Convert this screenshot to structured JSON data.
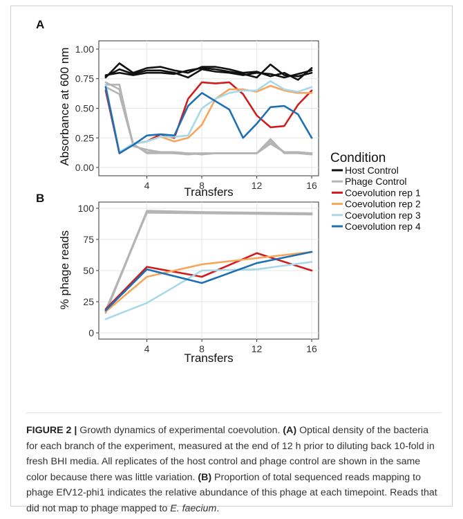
{
  "figure": {
    "caption": {
      "label": "FIGURE 2 |",
      "intro": " Growth dynamics of experimental coevolution. ",
      "a_marker": "(A)",
      "a_text": " Optical density of the bacteria for each branch of the experiment, measured at the end of 12 h prior to diluting back 10-fold in fresh BHI media. All replicates of the host control and phage control are shown in the same color because there was little variation. ",
      "b_marker": "(B)",
      "b_text": " Proportion of total sequenced reads mapping to phage EfV12-phi1 indicates the relative abundance of this phage at each timepoint. Reads that did not map to phage mapped to ",
      "species": "E. faecium",
      "end": "."
    }
  },
  "legend": {
    "title": "Condition",
    "items": [
      {
        "label": "Host Control",
        "color": "#111111"
      },
      {
        "label": "Phage Control",
        "color": "#b4b4b4"
      },
      {
        "label": "Coevolution rep 1",
        "color": "#cf1d1d"
      },
      {
        "label": "Coevolution rep 2",
        "color": "#f5a65a"
      },
      {
        "label": "Coevolution rep 3",
        "color": "#a8d8ea"
      },
      {
        "label": "Coevolution rep 4",
        "color": "#1f6fb4"
      }
    ]
  },
  "chart_data": [
    {
      "panel": "A",
      "type": "line",
      "xlabel": "Transfers",
      "ylabel": "Absorbance at 600 nm",
      "xlim": [
        1,
        16
      ],
      "ylim": [
        0,
        1
      ],
      "xticks": [
        4,
        8,
        12,
        16
      ],
      "yticks": [
        0.0,
        0.25,
        0.5,
        0.75,
        1.0
      ],
      "ytick_labels": [
        "0.00",
        "0.25",
        "0.50",
        "0.75",
        "1.00"
      ],
      "grid": true,
      "series": [
        {
          "group": "Host Control",
          "x": [
            1,
            2,
            3,
            4,
            5,
            6,
            7,
            8,
            9,
            10,
            11,
            12,
            13,
            14,
            15,
            16
          ],
          "y": [
            0.76,
            0.88,
            0.8,
            0.84,
            0.85,
            0.82,
            0.8,
            0.85,
            0.85,
            0.83,
            0.8,
            0.81,
            0.77,
            0.8,
            0.74,
            0.84
          ]
        },
        {
          "group": "Host Control",
          "x": [
            1,
            2,
            3,
            4,
            5,
            6,
            7,
            8,
            9,
            10,
            11,
            12,
            13,
            14,
            15,
            16
          ],
          "y": [
            0.78,
            0.8,
            0.78,
            0.8,
            0.8,
            0.79,
            0.82,
            0.84,
            0.83,
            0.81,
            0.79,
            0.76,
            0.87,
            0.78,
            0.77,
            0.8
          ]
        },
        {
          "group": "Host Control",
          "x": [
            1,
            2,
            3,
            4,
            5,
            6,
            7,
            8,
            9,
            10,
            11,
            12,
            13,
            14,
            15,
            16
          ],
          "y": [
            0.77,
            0.83,
            0.79,
            0.82,
            0.82,
            0.8,
            0.76,
            0.83,
            0.81,
            0.8,
            0.78,
            0.8,
            0.79,
            0.76,
            0.79,
            0.82
          ]
        },
        {
          "group": "Phage Control",
          "x": [
            1,
            2,
            3,
            4,
            5,
            6,
            7,
            8,
            9,
            10,
            11,
            12,
            13,
            14,
            15,
            16
          ],
          "y": [
            0.72,
            0.66,
            0.2,
            0.12,
            0.12,
            0.12,
            0.11,
            0.12,
            0.12,
            0.12,
            0.12,
            0.12,
            0.22,
            0.13,
            0.13,
            0.12
          ]
        },
        {
          "group": "Phage Control",
          "x": [
            1,
            2,
            3,
            4,
            5,
            6,
            7,
            8,
            9,
            10,
            11,
            12,
            13,
            14,
            15,
            16
          ],
          "y": [
            0.7,
            0.7,
            0.18,
            0.15,
            0.13,
            0.12,
            0.12,
            0.11,
            0.12,
            0.12,
            0.12,
            0.12,
            0.24,
            0.12,
            0.12,
            0.11
          ]
        },
        {
          "group": "Phage Control",
          "x": [
            1,
            2,
            3,
            4,
            5,
            6,
            7,
            8,
            9,
            10,
            11,
            12,
            13,
            14,
            15,
            16
          ],
          "y": [
            0.68,
            0.62,
            0.19,
            0.13,
            0.13,
            0.13,
            0.12,
            0.12,
            0.12,
            0.12,
            0.12,
            0.12,
            0.2,
            0.13,
            0.13,
            0.12
          ]
        },
        {
          "group": "Coevolution rep 1",
          "x": [
            1,
            2,
            3,
            4,
            5,
            6,
            7,
            8,
            9,
            10,
            11,
            12,
            13,
            14,
            15,
            16
          ],
          "y": [
            0.65,
            0.12,
            0.2,
            0.22,
            0.28,
            0.25,
            0.58,
            0.72,
            0.71,
            0.72,
            0.62,
            0.44,
            0.34,
            0.35,
            0.53,
            0.65
          ]
        },
        {
          "group": "Coevolution rep 2",
          "x": [
            1,
            2,
            3,
            4,
            5,
            6,
            7,
            8,
            9,
            10,
            11,
            12,
            13,
            14,
            15,
            16
          ],
          "y": [
            0.7,
            0.12,
            0.2,
            0.22,
            0.26,
            0.22,
            0.25,
            0.36,
            0.58,
            0.66,
            0.66,
            0.64,
            0.69,
            0.65,
            0.63,
            0.63
          ]
        },
        {
          "group": "Coevolution rep 3",
          "x": [
            1,
            2,
            3,
            4,
            5,
            6,
            7,
            8,
            9,
            10,
            11,
            12,
            13,
            14,
            15,
            16
          ],
          "y": [
            0.7,
            0.13,
            0.2,
            0.22,
            0.26,
            0.26,
            0.27,
            0.5,
            0.58,
            0.63,
            0.65,
            0.65,
            0.73,
            0.66,
            0.64,
            0.68
          ]
        },
        {
          "group": "Coevolution rep 4",
          "x": [
            1,
            2,
            3,
            4,
            5,
            6,
            7,
            8,
            9,
            10,
            11,
            12,
            13,
            14,
            15,
            16
          ],
          "y": [
            0.68,
            0.12,
            0.19,
            0.27,
            0.28,
            0.27,
            0.52,
            0.63,
            0.56,
            0.49,
            0.25,
            0.37,
            0.51,
            0.52,
            0.45,
            0.25
          ]
        }
      ]
    },
    {
      "panel": "B",
      "type": "line",
      "xlabel": "Transfers",
      "ylabel": "% phage reads",
      "xlim": [
        1,
        16
      ],
      "ylim": [
        0,
        100
      ],
      "xticks": [
        4,
        8,
        12,
        16
      ],
      "yticks": [
        0,
        25,
        50,
        75,
        100
      ],
      "ytick_labels": [
        "0",
        "25",
        "50",
        "75",
        "100"
      ],
      "grid": true,
      "series": [
        {
          "group": "Phage Control",
          "x": [
            1,
            4,
            8,
            12,
            16
          ],
          "y": [
            17,
            98,
            97,
            96.5,
            96
          ]
        },
        {
          "group": "Phage Control",
          "x": [
            1,
            4,
            8,
            12,
            16
          ],
          "y": [
            16,
            97,
            96.5,
            96,
            95.5
          ]
        },
        {
          "group": "Phage Control",
          "x": [
            1,
            4,
            8,
            12,
            16
          ],
          "y": [
            18,
            96.5,
            96,
            95.5,
            95
          ]
        },
        {
          "group": "Coevolution rep 1",
          "x": [
            1,
            4,
            8,
            12,
            16
          ],
          "y": [
            19,
            53,
            45,
            64,
            50
          ]
        },
        {
          "group": "Coevolution rep 2",
          "x": [
            1,
            4,
            8,
            12,
            16
          ],
          "y": [
            17,
            45,
            55,
            60,
            65
          ]
        },
        {
          "group": "Coevolution rep 3",
          "x": [
            1,
            4,
            8,
            12,
            16
          ],
          "y": [
            11,
            24,
            50,
            51,
            57
          ]
        },
        {
          "group": "Coevolution rep 4",
          "x": [
            1,
            4,
            8,
            12,
            16
          ],
          "y": [
            18,
            51,
            40,
            56,
            65
          ]
        }
      ]
    }
  ]
}
